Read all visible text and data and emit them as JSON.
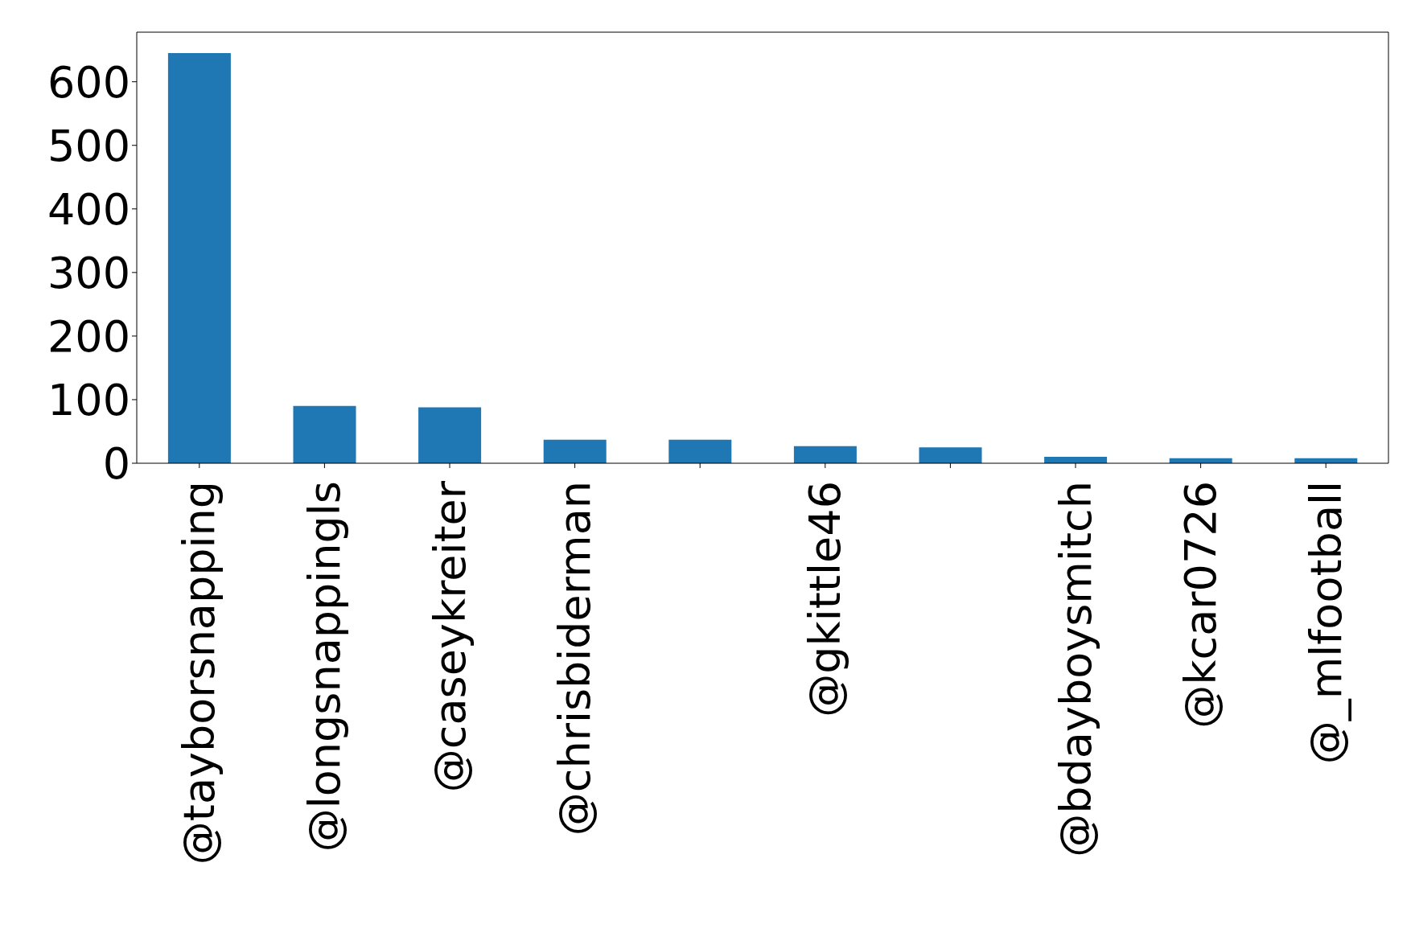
{
  "chart_data": {
    "type": "bar",
    "categories": [
      "@tayborsnapping",
      "@longsnappingls",
      "@caseykreiter",
      "@chrisbiderman",
      null,
      "@gkittle46",
      null,
      "@bdayboysmitch",
      "@kcar0726",
      "@_mlfootball"
    ],
    "values": [
      645,
      90,
      88,
      37,
      37,
      27,
      25,
      10,
      8,
      8
    ],
    "color": "#1f77b4",
    "ylim": [
      0,
      678
    ],
    "yticks": [
      0,
      100,
      200,
      300,
      400,
      500,
      600
    ]
  }
}
